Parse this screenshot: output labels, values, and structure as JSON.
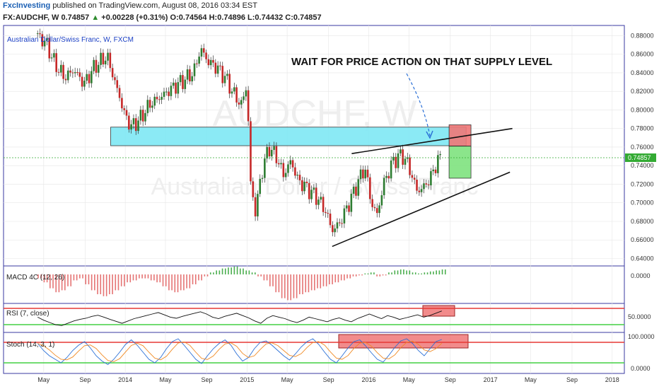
{
  "header": {
    "publisher": "FxcInvesting",
    "published_text": "published on TradingView.com, August 08, 2016 03:34 EST",
    "symbol": "FX:AUDCHF, W",
    "last": "0.74857",
    "arrow": "▲",
    "change": "+0.00228 (+0.31%)",
    "open_label": "O:",
    "open": "0.74564",
    "high_label": "H:",
    "high": "0.74896",
    "low_label": "L:",
    "low": "0.74432",
    "close_label": "C:",
    "close": "0.74857"
  },
  "chart_data": {
    "type": "candlestick",
    "title": "Australian Dollar/Swiss Franc, W, FXCM",
    "watermark_symbol": "AUDCHF, W",
    "watermark_name": "Australian Dollar / Swiss Franc",
    "annotation": "WAIT FOR PRICE ACTION ON THAT SUPPLY LEVEL",
    "current_price_label": "0.74857",
    "y_ticks": [
      "0.88000",
      "0.86000",
      "0.84000",
      "0.82000",
      "0.80000",
      "0.78000",
      "0.76000",
      "0.74000",
      "0.72000",
      "0.70000",
      "0.68000",
      "0.66000",
      "0.64000"
    ],
    "ylim": [
      0.632,
      0.891
    ],
    "x_ticks": [
      "May",
      "Sep",
      "2014",
      "May",
      "Sep",
      "2015",
      "May",
      "Sep",
      "2016",
      "May",
      "Sep",
      "2017",
      "May",
      "Sep",
      "2018"
    ],
    "price_path": [
      [
        2013.28,
        0.88
      ],
      [
        2013.35,
        0.872
      ],
      [
        2013.42,
        0.85
      ],
      [
        2013.5,
        0.835
      ],
      [
        2013.58,
        0.843
      ],
      [
        2013.66,
        0.828
      ],
      [
        2013.75,
        0.847
      ],
      [
        2013.85,
        0.858
      ],
      [
        2013.95,
        0.815
      ],
      [
        2014.0,
        0.793
      ],
      [
        2014.05,
        0.782
      ],
      [
        2014.12,
        0.79
      ],
      [
        2014.2,
        0.806
      ],
      [
        2014.3,
        0.815
      ],
      [
        2014.4,
        0.825
      ],
      [
        2014.48,
        0.832
      ],
      [
        2014.56,
        0.84
      ],
      [
        2014.62,
        0.866
      ],
      [
        2014.68,
        0.852
      ],
      [
        2014.75,
        0.846
      ],
      [
        2014.82,
        0.835
      ],
      [
        2014.88,
        0.82
      ],
      [
        2014.95,
        0.805
      ],
      [
        2015.0,
        0.827
      ],
      [
        2015.03,
        0.72
      ],
      [
        2015.07,
        0.69
      ],
      [
        2015.12,
        0.733
      ],
      [
        2015.18,
        0.76
      ],
      [
        2015.24,
        0.75
      ],
      [
        2015.3,
        0.73
      ],
      [
        2015.36,
        0.745
      ],
      [
        2015.42,
        0.724
      ],
      [
        2015.5,
        0.715
      ],
      [
        2015.58,
        0.705
      ],
      [
        2015.65,
        0.69
      ],
      [
        2015.7,
        0.67
      ],
      [
        2015.76,
        0.678
      ],
      [
        2015.84,
        0.7
      ],
      [
        2015.92,
        0.725
      ],
      [
        2015.97,
        0.738
      ],
      [
        2016.02,
        0.7
      ],
      [
        2016.07,
        0.687
      ],
      [
        2016.12,
        0.72
      ],
      [
        2016.2,
        0.745
      ],
      [
        2016.27,
        0.752
      ],
      [
        2016.32,
        0.742
      ],
      [
        2016.4,
        0.712
      ],
      [
        2016.46,
        0.718
      ],
      [
        2016.52,
        0.73
      ],
      [
        2016.56,
        0.745
      ],
      [
        2016.6,
        0.7486
      ]
    ],
    "zones": [
      {
        "name": "supply-zone",
        "x": [
          2013.88,
          2016.8
        ],
        "y": [
          0.7615,
          0.7815
        ],
        "color": "#7fe8f5"
      },
      {
        "name": "risk-box",
        "x": [
          2016.66,
          2016.84
        ],
        "y": [
          0.761,
          0.784
        ],
        "color": "#f07777"
      },
      {
        "name": "target-box",
        "x": [
          2016.66,
          2016.84
        ],
        "y": [
          0.7265,
          0.761
        ],
        "color": "#7fe37f"
      }
    ],
    "trendlines": [
      {
        "name": "lower-trendline",
        "from": [
          2015.7,
          0.653
        ],
        "to": [
          2017.16,
          0.733
        ]
      },
      {
        "name": "upper-trendline",
        "from": [
          2015.86,
          0.753
        ],
        "to": [
          2017.18,
          0.78
        ]
      }
    ],
    "colors": {
      "up": "#2e7d32",
      "down": "#c62828",
      "grid": "#e6e6e6",
      "axis_label": "#1a3fc4"
    },
    "macd": {
      "label": "MACD 4C (12, 26)",
      "zero_tick": "0.0000",
      "values": [
        -0.2,
        -0.4,
        -0.7,
        -0.9,
        -0.8,
        -0.6,
        -0.3,
        -0.2,
        -0.5,
        -0.8,
        -1.0,
        -1.1,
        -1.0,
        -0.8,
        -0.6,
        -0.4,
        -0.3,
        -0.2,
        -0.2,
        -0.3,
        -0.4,
        -0.6,
        -0.8,
        -0.9,
        -0.8,
        -0.7,
        -0.5,
        -0.3,
        -0.1,
        0.1,
        0.2,
        0.3,
        0.35,
        0.4,
        0.3,
        0.2,
        0.1,
        -0.1,
        -0.3,
        -0.6,
        -0.9,
        -1.2,
        -1.3,
        -1.2,
        -1.0,
        -0.9,
        -0.8,
        -0.7,
        -0.6,
        -0.5,
        -0.4,
        -0.3,
        -0.2,
        -0.1,
        -0.05,
        0.05,
        0.1,
        -0.1,
        -0.05,
        0.1,
        0.2,
        0.25,
        0.2,
        0.1,
        0.05,
        0.1,
        0.15,
        0.2,
        0.25
      ]
    },
    "rsi": {
      "label": "RSI (7, close)",
      "tick": "50.0000",
      "values": [
        58,
        50,
        44,
        38,
        36,
        42,
        48,
        52,
        55,
        60,
        63,
        58,
        52,
        47,
        42,
        48,
        54,
        58,
        62,
        66,
        70,
        64,
        58,
        55,
        60,
        64,
        68,
        72,
        66,
        58,
        54,
        60,
        64,
        68,
        62,
        56,
        48,
        42,
        55,
        62,
        58,
        54,
        48,
        44,
        50,
        58,
        54,
        50,
        46,
        52,
        56,
        50,
        46,
        54,
        60,
        66,
        60,
        54,
        62,
        58,
        52,
        56,
        60,
        64,
        58,
        62,
        68,
        74
      ]
    },
    "stoch": {
      "label": "Stoch (14, 3, 1)",
      "top_tick": "100.0000",
      "bottom_tick": "0.0000",
      "values": [
        75,
        55,
        40,
        30,
        20,
        35,
        55,
        70,
        80,
        62,
        40,
        25,
        15,
        30,
        50,
        72,
        85,
        70,
        50,
        30,
        20,
        35,
        60,
        80,
        88,
        70,
        50,
        30,
        18,
        40,
        60,
        75,
        85,
        70,
        45,
        25,
        35,
        60,
        78,
        82,
        70,
        55,
        40,
        28,
        45,
        65,
        80,
        88,
        72,
        50,
        30,
        20,
        40,
        62,
        80,
        85,
        68,
        48,
        30,
        22,
        42,
        64,
        82,
        88,
        75,
        55,
        40,
        60,
        80,
        86
      ]
    }
  }
}
